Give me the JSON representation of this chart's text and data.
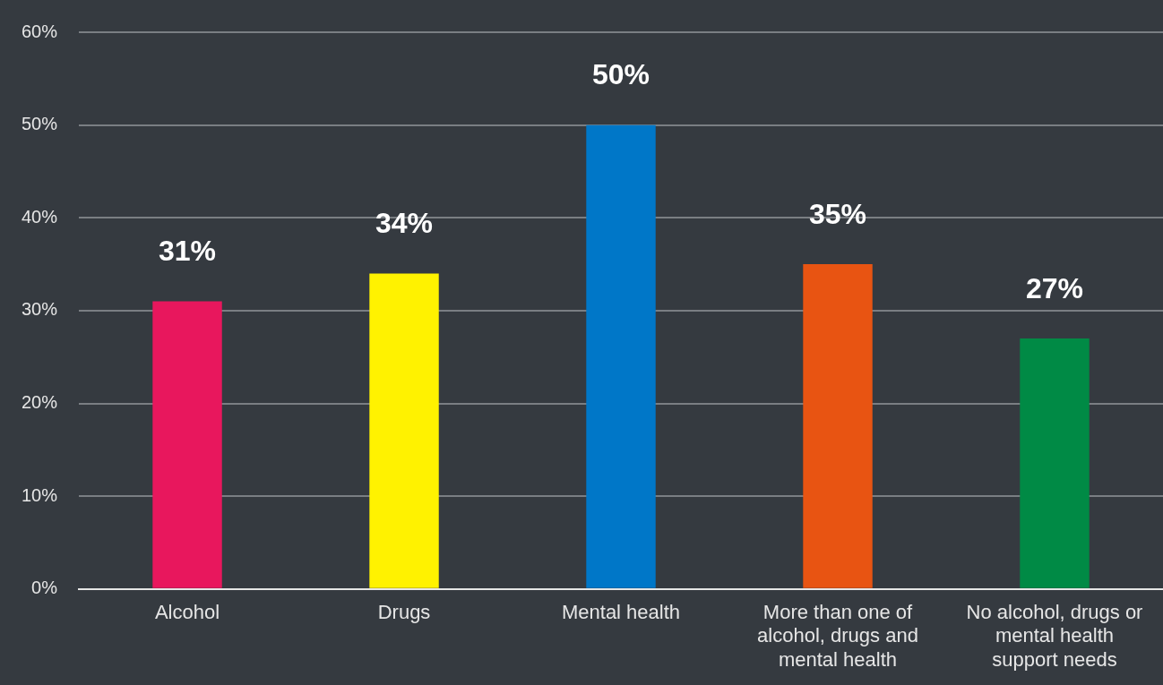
{
  "chart_data": {
    "type": "bar",
    "categories": [
      "Alcohol",
      "Drugs",
      "Mental health",
      "More than one of alcohol, drugs and mental health",
      "No alcohol, drugs or mental health support needs"
    ],
    "values": [
      31,
      34,
      50,
      35,
      27
    ],
    "colors": [
      "#e8175d",
      "#fff200",
      "#0077c8",
      "#e85412",
      "#008a45"
    ],
    "ylim": [
      0,
      60
    ],
    "yticks": [
      {
        "value": 0,
        "label": "0%"
      },
      {
        "value": 10,
        "label": "10%"
      },
      {
        "value": 20,
        "label": "20%"
      },
      {
        "value": 30,
        "label": "30%"
      },
      {
        "value": 40,
        "label": "40%"
      },
      {
        "value": 50,
        "label": "50%"
      },
      {
        "value": 60,
        "label": "60%"
      }
    ],
    "grid": "y",
    "legend": false,
    "value_labels": [
      "31%",
      "34%",
      "50%",
      "35%",
      "27%"
    ]
  }
}
